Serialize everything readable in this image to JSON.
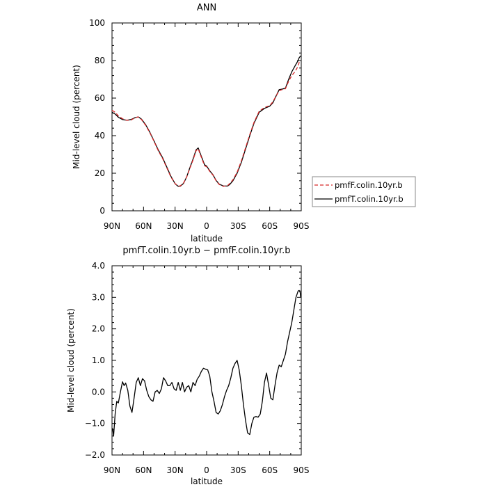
{
  "chart_data": [
    {
      "type": "line",
      "title": "ANN",
      "xlabel": "latitude",
      "ylabel": "Mid-level cloud (percent)",
      "xlim": [
        90,
        -90
      ],
      "ylim": [
        0,
        100
      ],
      "x_ticks": [
        90,
        60,
        30,
        0,
        -30,
        -60,
        -90
      ],
      "x_tick_labels": [
        "90N",
        "60N",
        "30N",
        "0",
        "30S",
        "60S",
        "90S"
      ],
      "y_ticks": [
        0,
        20,
        40,
        60,
        80,
        100
      ],
      "y_tick_labels": [
        "0",
        "20",
        "40",
        "60",
        "80",
        "100"
      ],
      "legend": {
        "placement": "right",
        "entries": [
          "pmfF.colin.10yr.b",
          "pmfT.colin.10yr.b"
        ]
      },
      "series": [
        {
          "name": "pmfF.colin.10yr.b",
          "color": "#d62728",
          "dash": "dashed",
          "x": [
            90,
            87,
            84,
            80,
            76,
            72,
            68,
            65,
            62,
            58,
            54,
            50,
            46,
            42,
            38,
            34,
            30,
            27,
            25,
            22,
            19,
            16,
            13,
            10,
            8,
            6,
            4,
            2,
            0,
            -3,
            -6,
            -9,
            -12,
            -16,
            -20,
            -22,
            -25,
            -29,
            -33,
            -37,
            -41,
            -45,
            -50,
            -55,
            -60,
            -63,
            -66,
            -69,
            -72,
            -75,
            -78,
            -81,
            -84,
            -87,
            -88,
            -89.5
          ],
          "values": [
            53.5,
            52.5,
            50.5,
            49,
            48.2,
            48.3,
            49.5,
            50,
            48.6,
            45.5,
            41.5,
            37,
            32,
            28,
            23,
            18,
            14.5,
            13.2,
            13.3,
            14.8,
            18,
            22.5,
            27,
            32,
            33,
            30,
            27,
            24,
            23.5,
            21,
            19,
            16,
            14,
            13,
            13.5,
            14.5,
            16.5,
            20.5,
            26.5,
            33.5,
            40.5,
            47,
            53,
            55,
            56,
            58,
            61,
            64,
            64.5,
            65,
            69,
            72,
            74,
            77,
            79,
            80
          ]
        },
        {
          "name": "pmfT.colin.10yr.b",
          "color": "#000000",
          "dash": "solid",
          "x": [
            90,
            87,
            84,
            80,
            76,
            72,
            68,
            65,
            62,
            58,
            54,
            50,
            46,
            42,
            38,
            34,
            30,
            27,
            25,
            22,
            19,
            16,
            13,
            10,
            8,
            6,
            4,
            2,
            0,
            -3,
            -6,
            -9,
            -12,
            -16,
            -20,
            -22,
            -25,
            -29,
            -33,
            -37,
            -41,
            -45,
            -50,
            -55,
            -60,
            -63,
            -66,
            -69,
            -72,
            -75,
            -78,
            -81,
            -84,
            -87,
            -88,
            -89.5
          ],
          "values": [
            52.5,
            51.5,
            49.8,
            48.6,
            48.2,
            48.6,
            49.6,
            50,
            48.8,
            45.8,
            41.8,
            37.2,
            32.4,
            28.4,
            23.4,
            18.4,
            14.4,
            13,
            13.1,
            14.6,
            18,
            22.8,
            27.5,
            32.5,
            33.5,
            30.5,
            27.5,
            24.5,
            23.8,
            21.3,
            19.2,
            16.2,
            14.2,
            13.2,
            13.2,
            14,
            16,
            20,
            25.8,
            32.8,
            40,
            46.5,
            52.5,
            54.5,
            55.7,
            57.5,
            61,
            64.5,
            64.8,
            65.3,
            70,
            74,
            77,
            80,
            81.5,
            82.5
          ]
        }
      ]
    },
    {
      "type": "line",
      "title": "pmfT.colin.10yr.b − pmfF.colin.10yr.b",
      "xlabel": "latitude",
      "ylabel": "Mid-level cloud (percent)",
      "xlim": [
        90,
        -90
      ],
      "ylim": [
        -2.0,
        4.0
      ],
      "x_ticks": [
        90,
        60,
        30,
        0,
        -30,
        -60,
        -90
      ],
      "x_tick_labels": [
        "90N",
        "60N",
        "30N",
        "0",
        "30S",
        "60S",
        "90S"
      ],
      "y_ticks": [
        -2,
        -1,
        0,
        1,
        2,
        3,
        4
      ],
      "y_tick_labels": [
        "−2.0",
        "−1.0",
        "0.0",
        "1.0",
        "2.0",
        "3.0",
        "4.0"
      ],
      "series": [
        {
          "color": "#000000",
          "dash": "solid",
          "x": [
            89.5,
            88.5,
            87,
            85.5,
            84,
            82,
            80,
            78.5,
            77,
            75,
            73,
            71,
            69,
            67,
            65,
            63,
            61,
            59,
            57,
            55,
            53,
            51,
            49,
            47,
            45,
            43,
            41,
            39,
            37,
            35,
            33,
            31,
            29,
            27,
            25,
            23,
            21,
            19,
            17,
            15,
            13,
            11,
            9,
            7,
            5,
            3,
            1,
            -1,
            -3,
            -5,
            -7,
            -9,
            -11,
            -13,
            -15,
            -17,
            -19,
            -21,
            -23,
            -25,
            -27,
            -29,
            -31,
            -33,
            -35,
            -37,
            -39,
            -41,
            -43,
            -45,
            -47,
            -49,
            -51,
            -53,
            -55,
            -57,
            -59,
            -61,
            -63,
            -65,
            -67,
            -69,
            -71,
            -73,
            -75,
            -77,
            -79,
            -81,
            -83,
            -85,
            -86,
            -87,
            -88,
            -89,
            -89.5
          ],
          "values": [
            -1.15,
            -1.4,
            -0.7,
            -0.3,
            -0.35,
            0.0,
            0.32,
            0.2,
            0.28,
            0.05,
            -0.45,
            -0.65,
            -0.2,
            0.3,
            0.45,
            0.2,
            0.42,
            0.35,
            0.05,
            -0.15,
            -0.25,
            -0.3,
            0.0,
            0.05,
            -0.05,
            0.1,
            0.45,
            0.35,
            0.2,
            0.2,
            0.3,
            0.1,
            0.05,
            0.3,
            0.05,
            0.3,
            0.0,
            0.15,
            0.2,
            0.0,
            0.3,
            0.2,
            0.4,
            0.5,
            0.65,
            0.75,
            0.72,
            0.7,
            0.5,
            0.0,
            -0.3,
            -0.65,
            -0.7,
            -0.6,
            -0.4,
            -0.15,
            0.05,
            0.2,
            0.45,
            0.75,
            0.9,
            1.0,
            0.7,
            0.2,
            -0.4,
            -0.9,
            -1.3,
            -1.35,
            -1.0,
            -0.8,
            -0.78,
            -0.8,
            -0.7,
            -0.3,
            0.3,
            0.6,
            0.2,
            -0.2,
            -0.25,
            0.2,
            0.6,
            0.85,
            0.8,
            1.0,
            1.2,
            1.6,
            1.9,
            2.2,
            2.6,
            3.0,
            3.1,
            3.2,
            3.22,
            3.15,
            3.0
          ]
        }
      ]
    }
  ]
}
